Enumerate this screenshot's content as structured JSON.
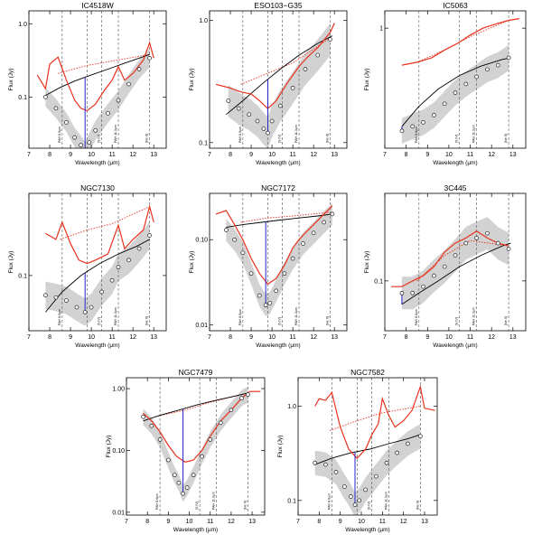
{
  "figure": {
    "xlabel": "Wavelength (μm)",
    "ylabel": "Flux (Jy)",
    "feature_labels": [
      "PAH 8.6μm",
      "[Ar III]",
      "[S IV]",
      "PAH 11.3μm",
      "[Ne II]"
    ],
    "colors": {
      "spectrum": "#e8321e",
      "fit": "#000000",
      "band": "#b4b4b4",
      "marker_fill": "#ffffff",
      "depth_line": "#2020c8"
    }
  },
  "chart_data": [
    {
      "type": "line",
      "title": "IC4518W",
      "xlim": [
        7,
        13.6
      ],
      "ylim": [
        0.02,
        1.5
      ],
      "xticks": [
        7,
        8,
        9,
        10,
        11,
        12,
        13
      ],
      "yticks": [
        0.1,
        1.0
      ],
      "ytick_labels": [
        "0.1",
        "1.0"
      ],
      "feature_lines": [
        8.6,
        9.8,
        10.5,
        11.3,
        12.8
      ],
      "series": [
        {
          "name": "observed",
          "x": [
            7.8,
            8.3,
            8.8,
            9.2,
            9.5,
            9.7,
            9.9,
            10.2,
            10.8,
            11.3,
            11.8,
            12.3,
            12.8
          ],
          "y": [
            0.1,
            0.07,
            0.045,
            0.028,
            0.022,
            0.018,
            0.024,
            0.035,
            0.06,
            0.09,
            0.15,
            0.24,
            0.34
          ]
        },
        {
          "name": "red_spectrum",
          "x": [
            7.4,
            7.8,
            8.0,
            8.4,
            8.8,
            9.2,
            9.5,
            9.8,
            10.2,
            10.6,
            11.0,
            11.3,
            11.6,
            12.0,
            12.5,
            12.8,
            13.0
          ],
          "y": [
            0.2,
            0.13,
            0.28,
            0.35,
            0.17,
            0.09,
            0.07,
            0.065,
            0.08,
            0.12,
            0.17,
            0.26,
            0.17,
            0.21,
            0.32,
            0.55,
            0.34
          ]
        },
        {
          "name": "continuum_fit",
          "x": [
            7.8,
            8.5,
            9.2,
            10.0,
            10.8,
            11.6,
            12.8
          ],
          "y": [
            0.105,
            0.135,
            0.165,
            0.2,
            0.24,
            0.29,
            0.38
          ]
        },
        {
          "name": "red_continuum",
          "x": [
            8.4,
            9.8,
            11.0,
            12.8
          ],
          "y": [
            0.21,
            0.27,
            0.31,
            0.38
          ]
        }
      ]
    },
    {
      "type": "line",
      "title": "ESO103−G35",
      "xlim": [
        7,
        13.6
      ],
      "ylim": [
        0.09,
        1.2
      ],
      "xticks": [
        7,
        8,
        9,
        10,
        11,
        12,
        13
      ],
      "yticks": [
        0.1,
        1.0
      ],
      "ytick_labels": [
        "0.1",
        "1.0"
      ],
      "feature_lines": [
        8.6,
        9.8,
        10.5,
        11.3,
        12.8
      ],
      "series": [
        {
          "name": "observed",
          "x": [
            7.9,
            8.4,
            8.9,
            9.3,
            9.6,
            9.8,
            10.0,
            10.4,
            11.0,
            11.6,
            12.2,
            12.8
          ],
          "y": [
            0.22,
            0.19,
            0.17,
            0.15,
            0.13,
            0.12,
            0.15,
            0.2,
            0.28,
            0.4,
            0.52,
            0.7
          ]
        },
        {
          "name": "red_spectrum",
          "x": [
            7.3,
            8.0,
            8.5,
            9.0,
            9.4,
            9.8,
            10.2,
            10.8,
            11.3,
            11.7,
            12.2,
            12.8,
            13.0
          ],
          "y": [
            0.3,
            0.28,
            0.26,
            0.25,
            0.22,
            0.19,
            0.22,
            0.32,
            0.42,
            0.5,
            0.6,
            0.8,
            0.95
          ]
        },
        {
          "name": "continuum_fit",
          "x": [
            7.8,
            8.6,
            9.5,
            10.4,
            11.3,
            12.2,
            12.9
          ],
          "y": [
            0.17,
            0.22,
            0.3,
            0.4,
            0.52,
            0.65,
            0.75
          ]
        },
        {
          "name": "red_continuum",
          "x": [
            8.5,
            9.8,
            11.0,
            12.8
          ],
          "y": [
            0.3,
            0.37,
            0.45,
            0.72
          ]
        }
      ]
    },
    {
      "type": "line",
      "title": "IC5063",
      "xlim": [
        7,
        13.6
      ],
      "ylim": [
        0.06,
        1.5
      ],
      "xticks": [
        7,
        8,
        9,
        10,
        11,
        12,
        13
      ],
      "yticks": [
        1.0
      ],
      "ytick_labels": [
        "1"
      ],
      "feature_lines": [
        8.6,
        10.5,
        11.3,
        12.8
      ],
      "series": [
        {
          "name": "observed",
          "x": [
            7.8,
            8.3,
            8.8,
            9.3,
            9.8,
            10.3,
            10.8,
            11.3,
            11.8,
            12.3,
            12.8
          ],
          "y": [
            0.09,
            0.1,
            0.11,
            0.13,
            0.17,
            0.22,
            0.27,
            0.32,
            0.38,
            0.42,
            0.5
          ]
        },
        {
          "name": "red_spectrum",
          "x": [
            7.8,
            8.5,
            9.2,
            9.8,
            10.4,
            11.0,
            11.6,
            12.2,
            12.8,
            13.3
          ],
          "y": [
            0.42,
            0.45,
            0.5,
            0.6,
            0.7,
            0.85,
            1.0,
            1.1,
            1.2,
            1.25
          ]
        },
        {
          "name": "continuum_fit",
          "x": [
            7.8,
            8.6,
            9.5,
            10.5,
            11.5,
            12.5,
            12.9
          ],
          "y": [
            0.1,
            0.16,
            0.24,
            0.33,
            0.41,
            0.48,
            0.5
          ]
        },
        {
          "name": "red_continuum",
          "x": [
            8.5,
            9.8,
            11.0,
            12.8
          ],
          "y": [
            0.45,
            0.6,
            0.82,
            1.2
          ]
        }
      ]
    },
    {
      "type": "line",
      "title": "NGC7130",
      "xlim": [
        7,
        13.6
      ],
      "ylim": [
        0.03,
        0.6
      ],
      "xticks": [
        7,
        8,
        9,
        10,
        11,
        12,
        13
      ],
      "yticks": [
        0.1
      ],
      "ytick_labels": [
        "0.1"
      ],
      "feature_lines": [
        8.6,
        9.8,
        10.5,
        11.3,
        12.8
      ],
      "series": [
        {
          "name": "observed",
          "x": [
            7.8,
            8.3,
            8.8,
            9.3,
            9.7,
            10.0,
            10.5,
            11.0,
            11.3,
            11.8,
            12.3,
            12.8
          ],
          "y": [
            0.065,
            0.062,
            0.058,
            0.05,
            0.045,
            0.05,
            0.07,
            0.09,
            0.12,
            0.14,
            0.18,
            0.24
          ]
        },
        {
          "name": "red_spectrum",
          "x": [
            7.8,
            8.3,
            8.6,
            9.0,
            9.4,
            9.8,
            10.2,
            10.8,
            11.3,
            11.6,
            12.0,
            12.5,
            12.8,
            13.0
          ],
          "y": [
            0.25,
            0.22,
            0.32,
            0.2,
            0.14,
            0.13,
            0.14,
            0.16,
            0.3,
            0.18,
            0.22,
            0.27,
            0.45,
            0.32
          ]
        },
        {
          "name": "continuum_fit",
          "x": [
            7.8,
            8.6,
            9.5,
            10.4,
            11.3,
            12.2,
            12.8
          ],
          "y": [
            0.045,
            0.07,
            0.1,
            0.13,
            0.16,
            0.19,
            0.22
          ]
        },
        {
          "name": "red_continuum",
          "x": [
            8.5,
            9.8,
            11.0,
            12.8
          ],
          "y": [
            0.22,
            0.27,
            0.31,
            0.45
          ]
        }
      ]
    },
    {
      "type": "line",
      "title": "NGC7172",
      "xlim": [
        7,
        13.6
      ],
      "ylim": [
        0.0085,
        0.35
      ],
      "xticks": [
        7,
        8,
        9,
        10,
        11,
        12,
        13
      ],
      "yticks": [
        0.01,
        0.1
      ],
      "ytick_labels": [
        "0.01",
        "0.10"
      ],
      "feature_lines": [
        8.6,
        9.8,
        10.5,
        11.3,
        12.8
      ],
      "series": [
        {
          "name": "observed",
          "x": [
            7.8,
            8.2,
            8.6,
            9.0,
            9.4,
            9.7,
            9.9,
            10.2,
            10.6,
            11.0,
            11.5,
            12.0,
            12.5,
            12.9
          ],
          "y": [
            0.13,
            0.1,
            0.07,
            0.04,
            0.022,
            0.017,
            0.018,
            0.025,
            0.04,
            0.06,
            0.09,
            0.12,
            0.16,
            0.2
          ]
        },
        {
          "name": "red_spectrum",
          "x": [
            7.3,
            7.8,
            8.2,
            8.6,
            9.0,
            9.4,
            9.8,
            10.2,
            10.6,
            11.0,
            11.3,
            11.6,
            12.0,
            12.5,
            12.9
          ],
          "y": [
            0.2,
            0.22,
            0.15,
            0.1,
            0.06,
            0.04,
            0.03,
            0.035,
            0.05,
            0.08,
            0.1,
            0.12,
            0.15,
            0.2,
            0.25
          ]
        },
        {
          "name": "continuum_fit",
          "x": [
            7.8,
            8.6,
            9.5,
            10.4,
            11.3,
            12.2,
            12.9
          ],
          "y": [
            0.14,
            0.15,
            0.16,
            0.17,
            0.18,
            0.19,
            0.2
          ]
        },
        {
          "name": "red_continuum",
          "x": [
            8.5,
            9.8,
            11.0,
            12.8
          ],
          "y": [
            0.16,
            0.18,
            0.19,
            0.21
          ]
        }
      ]
    },
    {
      "type": "line",
      "title": "3C445",
      "xlim": [
        7,
        13.6
      ],
      "ylim": [
        0.04,
        0.5
      ],
      "xticks": [
        7,
        8,
        9,
        10,
        11,
        12,
        13
      ],
      "yticks": [
        0.1
      ],
      "ytick_labels": [
        "0.1"
      ],
      "feature_lines": [
        8.6,
        10.5,
        11.3,
        12.8
      ],
      "series": [
        {
          "name": "observed",
          "x": [
            7.8,
            8.3,
            8.8,
            9.3,
            9.8,
            10.3,
            10.8,
            11.3,
            11.8,
            12.3,
            12.8
          ],
          "y": [
            0.08,
            0.08,
            0.09,
            0.11,
            0.13,
            0.16,
            0.2,
            0.22,
            0.24,
            0.2,
            0.18
          ]
        },
        {
          "name": "red_spectrum",
          "x": [
            7.3,
            7.8,
            8.3,
            8.8,
            9.3,
            9.8,
            10.3,
            10.8,
            11.3,
            11.8,
            12.3,
            12.8
          ],
          "y": [
            0.09,
            0.09,
            0.1,
            0.11,
            0.13,
            0.17,
            0.2,
            0.22,
            0.25,
            0.22,
            0.2,
            0.19
          ]
        },
        {
          "name": "continuum_fit",
          "x": [
            7.8,
            8.6,
            9.5,
            10.5,
            11.5,
            12.5,
            12.9
          ],
          "y": [
            0.065,
            0.08,
            0.1,
            0.13,
            0.16,
            0.19,
            0.2
          ]
        },
        {
          "name": "red_continuum",
          "x": [
            8.5,
            9.8,
            11.0,
            12.8
          ],
          "y": [
            0.1,
            0.16,
            0.21,
            0.19
          ]
        }
      ]
    },
    {
      "type": "line",
      "title": "NGC7479",
      "xlim": [
        7,
        13.6
      ],
      "ylim": [
        0.009,
        1.5
      ],
      "xticks": [
        7,
        8,
        9,
        10,
        11,
        12,
        13
      ],
      "yticks": [
        0.01,
        0.1,
        1.0
      ],
      "ytick_labels": [
        "0.01",
        "0.10",
        "1.00"
      ],
      "feature_lines": [
        8.6,
        10.5,
        11.3,
        12.8
      ],
      "series": [
        {
          "name": "observed",
          "x": [
            7.8,
            8.2,
            8.6,
            9.0,
            9.3,
            9.5,
            9.7,
            9.9,
            10.2,
            10.6,
            11.0,
            11.5,
            12.0,
            12.5,
            12.8
          ],
          "y": [
            0.35,
            0.25,
            0.15,
            0.07,
            0.04,
            0.03,
            0.02,
            0.025,
            0.04,
            0.08,
            0.15,
            0.28,
            0.45,
            0.7,
            0.8
          ]
        },
        {
          "name": "red_spectrum",
          "x": [
            7.8,
            8.2,
            8.6,
            9.0,
            9.4,
            9.8,
            10.2,
            10.6,
            11.0,
            11.5,
            12.0,
            12.5,
            12.9,
            13.4
          ],
          "y": [
            0.4,
            0.3,
            0.2,
            0.12,
            0.08,
            0.065,
            0.07,
            0.1,
            0.17,
            0.3,
            0.45,
            0.7,
            0.9,
            0.9
          ]
        },
        {
          "name": "continuum_fit",
          "x": [
            7.8,
            8.6,
            9.5,
            10.4,
            11.3,
            12.2,
            12.8
          ],
          "y": [
            0.3,
            0.37,
            0.45,
            0.55,
            0.65,
            0.76,
            0.85
          ]
        },
        {
          "name": "red_continuum",
          "x": [
            8.5,
            9.8,
            11.0,
            12.8
          ],
          "y": [
            0.36,
            0.45,
            0.6,
            0.85
          ]
        }
      ]
    },
    {
      "type": "line",
      "title": "NGC7582",
      "xlim": [
        7,
        13.6
      ],
      "ylim": [
        0.07,
        2.0
      ],
      "xticks": [
        7,
        8,
        9,
        10,
        11,
        12,
        13
      ],
      "yticks": [
        0.1,
        1.0
      ],
      "ytick_labels": [
        "0.1",
        "1.0"
      ],
      "feature_lines": [
        8.6,
        9.8,
        10.5,
        11.3,
        12.8
      ],
      "series": [
        {
          "name": "observed",
          "x": [
            7.8,
            8.3,
            8.8,
            9.2,
            9.5,
            9.7,
            9.9,
            10.2,
            10.7,
            11.2,
            11.7,
            12.2,
            12.8
          ],
          "y": [
            0.25,
            0.24,
            0.2,
            0.14,
            0.11,
            0.09,
            0.1,
            0.13,
            0.18,
            0.25,
            0.32,
            0.4,
            0.48
          ]
        },
        {
          "name": "red_spectrum",
          "x": [
            7.8,
            8.0,
            8.3,
            8.6,
            9.0,
            9.4,
            9.8,
            10.2,
            10.5,
            10.8,
            11.0,
            11.3,
            11.6,
            12.0,
            12.4,
            12.8,
            13.0,
            13.5
          ],
          "y": [
            1.0,
            1.2,
            1.15,
            1.4,
            0.6,
            0.35,
            0.28,
            0.35,
            0.5,
            0.65,
            1.2,
            0.8,
            0.6,
            0.7,
            0.9,
            1.6,
            0.95,
            0.9
          ]
        },
        {
          "name": "continuum_fit",
          "x": [
            7.8,
            8.6,
            9.5,
            10.4,
            11.3,
            12.2,
            12.8
          ],
          "y": [
            0.24,
            0.28,
            0.32,
            0.35,
            0.4,
            0.45,
            0.5
          ]
        },
        {
          "name": "red_continuum",
          "x": [
            8.5,
            9.8,
            11.0,
            12.8
          ],
          "y": [
            0.55,
            0.7,
            0.85,
            1.0
          ]
        }
      ]
    }
  ]
}
